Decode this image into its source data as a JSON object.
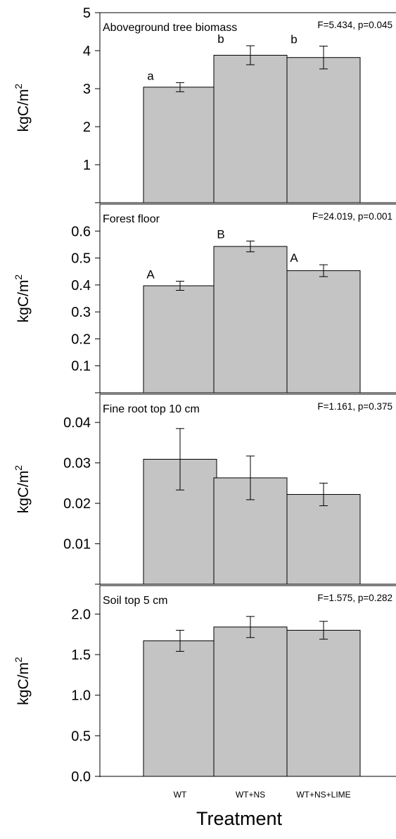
{
  "figure": {
    "xlabel": "Treatment",
    "ylabel_base": "kgC/m",
    "ylabel_sup": "2",
    "colors": {
      "bar_fill": "#c4c4c4",
      "bar_stroke": "#000000",
      "axis": "#000000"
    }
  },
  "chart_data": [
    {
      "type": "bar",
      "title": "Aboveground tree biomass",
      "stats": "F=5.434, p=0.045",
      "categories": [
        "WT",
        "WT+NS",
        "WT+NS+LIME"
      ],
      "values": [
        3.04,
        3.88,
        3.82
      ],
      "errors": [
        0.12,
        0.25,
        0.3
      ],
      "letters": [
        "a",
        "b",
        "b"
      ],
      "ylim": [
        0,
        5
      ],
      "yticks": [
        1,
        2,
        3,
        4,
        5
      ],
      "ytick_labels": [
        "1",
        "2",
        "3",
        "4",
        "5"
      ],
      "ylabel": "kgC/m²",
      "show_xticklabels": false
    },
    {
      "type": "bar",
      "title": "Forest floor",
      "stats": "F=24.019, p=0.001",
      "categories": [
        "WT",
        "WT+NS",
        "WT+NS+LIME"
      ],
      "values": [
        0.397,
        0.543,
        0.453
      ],
      "errors": [
        0.017,
        0.02,
        0.022
      ],
      "letters": [
        "A",
        "B",
        "A"
      ],
      "ylim": [
        0,
        0.7
      ],
      "yticks": [
        0.1,
        0.2,
        0.3,
        0.4,
        0.5,
        0.6
      ],
      "ytick_labels": [
        "0.1",
        "0.2",
        "0.3",
        "0.4",
        "0.5",
        "0.6"
      ],
      "ylabel": "kgC/m²",
      "show_xticklabels": false
    },
    {
      "type": "bar",
      "title": "Fine root top 10 cm",
      "stats": "F=1.161, p=0.375",
      "categories": [
        "WT",
        "WT+NS",
        "WT+NS+LIME"
      ],
      "values": [
        0.0309,
        0.0263,
        0.0222
      ],
      "errors": [
        0.0076,
        0.0054,
        0.0028
      ],
      "letters": [
        "",
        "",
        ""
      ],
      "ylim": [
        0,
        0.047
      ],
      "yticks": [
        0.01,
        0.02,
        0.03,
        0.04
      ],
      "ytick_labels": [
        "0.01",
        "0.02",
        "0.03",
        "0.04"
      ],
      "ylabel": "kgC/m²",
      "show_xticklabels": false
    },
    {
      "type": "bar",
      "title": "Soil top 5 cm",
      "stats": "F=1.575, p=0.282",
      "categories": [
        "WT",
        "WT+NS",
        "WT+NS+LIME"
      ],
      "values": [
        1.67,
        1.84,
        1.8
      ],
      "errors": [
        0.13,
        0.13,
        0.11
      ],
      "letters": [
        "",
        "",
        ""
      ],
      "ylim": [
        0,
        2.35
      ],
      "yticks": [
        0.0,
        0.5,
        1.0,
        1.5,
        2.0
      ],
      "ytick_labels": [
        "0.0",
        "0.5",
        "1.0",
        "1.5",
        "2.0"
      ],
      "ylabel": "kgC/m²",
      "show_xticklabels": true
    }
  ]
}
